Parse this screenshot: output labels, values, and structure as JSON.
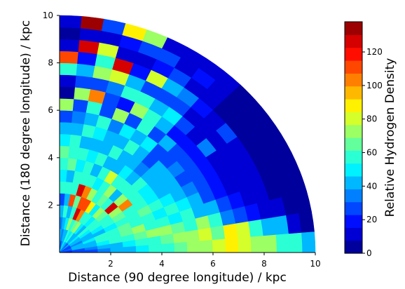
{
  "chart_data": {
    "type": "heatmap",
    "projection": "polar-quadrant",
    "xlabel": "Distance (90 degree longitude) / kpc",
    "ylabel": "Distance (180 degree longitude) / kpc",
    "xlim": [
      0,
      10
    ],
    "ylim": [
      0,
      10
    ],
    "xticks": [
      2,
      4,
      6,
      8,
      10
    ],
    "yticks": [
      2,
      4,
      6,
      8,
      10
    ],
    "colorbar": {
      "label": "Relative Hydrogen Density",
      "min": 0,
      "max": 138,
      "ticks": [
        0,
        20,
        40,
        60,
        80,
        100,
        120
      ],
      "colormap": "jet",
      "levels": 18
    },
    "radial_bin_kpc": 0.5,
    "angular_bin_deg": 5,
    "angle_convention": "degrees from the x axis (90 degree longitude) toward the y axis (180 degree longitude)",
    "cells": [
      {
        "ang": 87.5,
        "r_kpc": [
          0.25,
          0.75,
          1.25,
          1.75,
          2.25,
          2.75,
          3.25,
          3.75,
          4.25,
          4.75,
          5.25,
          5.75,
          6.25,
          6.75,
          7.25,
          7.75,
          8.25,
          8.75,
          9.25,
          9.75
        ],
        "density": [
          40,
          45,
          35,
          40,
          30,
          55,
          50,
          60,
          65,
          50,
          40,
          30,
          70,
          5,
          15,
          55,
          110,
          10,
          5,
          10
        ]
      },
      {
        "ang": 82.5,
        "r_kpc": [
          0.25,
          0.75,
          1.25,
          1.75,
          2.25,
          2.75,
          3.25,
          3.75,
          4.25,
          4.75,
          5.25,
          5.75,
          6.25,
          6.75,
          7.25,
          7.75,
          8.25,
          8.75,
          9.25,
          9.75
        ],
        "density": [
          30,
          35,
          40,
          55,
          45,
          60,
          45,
          65,
          55,
          60,
          45,
          35,
          25,
          75,
          25,
          40,
          20,
          125,
          10,
          135
        ]
      },
      {
        "ang": 77.5,
        "r_kpc": [
          0.25,
          0.75,
          1.25,
          1.75,
          2.25,
          2.75,
          3.25,
          3.75,
          4.25,
          4.75,
          5.25,
          5.75,
          6.25,
          6.75,
          7.25,
          7.75,
          8.25,
          8.75,
          9.25,
          9.75
        ],
        "density": [
          35,
          40,
          50,
          45,
          110,
          55,
          60,
          50,
          55,
          45,
          60,
          40,
          55,
          105,
          30,
          70,
          55,
          80,
          15,
          25
        ]
      },
      {
        "ang": 72.5,
        "r_kpc": [
          0.25,
          0.75,
          1.25,
          1.75,
          2.25,
          2.75,
          3.25,
          3.75,
          4.25,
          4.75,
          5.25,
          5.75,
          6.25,
          6.75,
          7.25,
          7.75,
          8.25,
          8.75,
          9.25,
          9.75
        ],
        "density": [
          40,
          45,
          70,
          60,
          65,
          125,
          60,
          55,
          50,
          45,
          50,
          55,
          30,
          25,
          35,
          80,
          125,
          15,
          20,
          85
        ]
      },
      {
        "ang": 67.5,
        "r_kpc": [
          0.25,
          0.75,
          1.25,
          1.75,
          2.25,
          2.75,
          3.25,
          3.75,
          4.25,
          4.75,
          5.25,
          5.75,
          6.25,
          6.75,
          7.25,
          7.75,
          8.25,
          8.75,
          9.25,
          9.75
        ],
        "density": [
          50,
          55,
          60,
          130,
          110,
          100,
          60,
          45,
          55,
          40,
          45,
          35,
          70,
          20,
          60,
          40,
          20,
          15,
          30,
          75
        ]
      },
      {
        "ang": 62.5,
        "r_kpc": [
          0.25,
          0.75,
          1.25,
          1.75,
          2.25,
          2.75,
          3.25,
          3.75,
          4.25,
          4.75,
          5.25,
          5.75,
          6.25,
          6.75,
          7.25,
          7.75,
          8.25,
          8.75,
          9.25,
          9.75
        ],
        "density": [
          45,
          50,
          65,
          100,
          110,
          70,
          50,
          60,
          45,
          55,
          40,
          50,
          30,
          75,
          55,
          30,
          80,
          20,
          25,
          15
        ]
      },
      {
        "ang": 57.5,
        "r_kpc": [
          0.25,
          0.75,
          1.25,
          1.75,
          2.25,
          2.75,
          3.25,
          3.75,
          4.25,
          4.75,
          5.25,
          5.75,
          6.25,
          6.75,
          7.25,
          7.75,
          8.25,
          8.75,
          9.25,
          9.75
        ],
        "density": [
          40,
          55,
          70,
          60,
          85,
          60,
          55,
          80,
          45,
          40,
          55,
          40,
          60,
          55,
          40,
          30,
          45,
          25,
          15,
          10
        ]
      },
      {
        "ang": 52.5,
        "r_kpc": [
          0.25,
          0.75,
          1.25,
          1.75,
          2.25,
          2.75,
          3.25,
          3.75,
          4.25,
          4.75,
          5.25,
          5.75,
          6.25,
          6.75,
          7.25,
          7.75,
          8.25,
          8.75,
          9.25,
          9.75
        ],
        "density": [
          35,
          45,
          50,
          55,
          50,
          65,
          75,
          55,
          50,
          45,
          40,
          50,
          30,
          45,
          50,
          25,
          35,
          15,
          20,
          10
        ]
      },
      {
        "ang": 47.5,
        "r_kpc": [
          0.25,
          0.75,
          1.25,
          1.75,
          2.25,
          2.75,
          3.25,
          3.75,
          4.25,
          4.75,
          5.25,
          5.75,
          6.25,
          6.75,
          7.25,
          7.75,
          8.25,
          8.75,
          9.25,
          9.75
        ],
        "density": [
          30,
          40,
          45,
          50,
          70,
          55,
          45,
          60,
          40,
          35,
          30,
          25,
          40,
          20,
          30,
          15,
          20,
          10,
          15,
          10
        ]
      },
      {
        "ang": 42.5,
        "r_kpc": [
          0.25,
          0.75,
          1.25,
          1.75,
          2.25,
          2.75,
          3.25,
          3.75,
          4.25,
          4.75,
          5.25,
          5.75,
          6.25,
          6.75,
          7.25,
          7.75,
          8.25,
          8.75,
          9.25,
          9.75
        ],
        "density": [
          40,
          50,
          55,
          60,
          65,
          125,
          75,
          60,
          55,
          45,
          40,
          30,
          25,
          20,
          15,
          10,
          10,
          5,
          5,
          5
        ]
      },
      {
        "ang": 37.5,
        "r_kpc": [
          0.25,
          0.75,
          1.25,
          1.75,
          2.25,
          2.75,
          3.25,
          3.75,
          4.25,
          4.75,
          5.25,
          5.75,
          6.25,
          6.75,
          7.25,
          7.75,
          8.25,
          8.75,
          9.25,
          9.75
        ],
        "density": [
          35,
          45,
          50,
          55,
          60,
          75,
          100,
          60,
          50,
          45,
          40,
          35,
          25,
          20,
          35,
          10,
          30,
          5,
          5,
          5
        ]
      },
      {
        "ang": 32.5,
        "r_kpc": [
          0.25,
          0.75,
          1.25,
          1.75,
          2.25,
          2.75,
          3.25,
          3.75,
          4.25,
          4.75,
          5.25,
          5.75,
          6.25,
          6.75,
          7.25,
          7.75,
          8.25,
          8.75,
          9.25,
          9.75
        ],
        "density": [
          30,
          40,
          45,
          50,
          55,
          65,
          60,
          55,
          50,
          45,
          40,
          30,
          25,
          20,
          15,
          10,
          10,
          5,
          5,
          5
        ]
      },
      {
        "ang": 27.5,
        "r_kpc": [
          0.25,
          0.75,
          1.25,
          1.75,
          2.25,
          2.75,
          3.25,
          3.75,
          4.25,
          4.75,
          5.25,
          5.75,
          6.25,
          6.75,
          7.25,
          7.75,
          8.25,
          8.75,
          9.25,
          9.75
        ],
        "density": [
          25,
          35,
          40,
          45,
          50,
          55,
          60,
          65,
          55,
          50,
          45,
          35,
          25,
          20,
          15,
          10,
          10,
          5,
          5,
          5
        ]
      },
      {
        "ang": 22.5,
        "r_kpc": [
          0.25,
          0.75,
          1.25,
          1.75,
          2.25,
          2.75,
          3.25,
          3.75,
          4.25,
          4.75,
          5.25,
          5.75,
          6.25,
          6.75,
          7.25,
          7.75,
          8.25,
          8.75,
          9.25,
          9.75
        ],
        "density": [
          30,
          40,
          50,
          55,
          60,
          65,
          55,
          60,
          50,
          55,
          50,
          40,
          30,
          20,
          15,
          10,
          10,
          5,
          5,
          5
        ]
      },
      {
        "ang": 17.5,
        "r_kpc": [
          0.25,
          0.75,
          1.25,
          1.75,
          2.25,
          2.75,
          3.25,
          3.75,
          4.25,
          4.75,
          5.25,
          5.75,
          6.25,
          6.75,
          7.25,
          7.75,
          8.25,
          8.75,
          9.25,
          9.75
        ],
        "density": [
          35,
          40,
          45,
          55,
          60,
          65,
          70,
          60,
          55,
          50,
          55,
          45,
          40,
          30,
          20,
          15,
          10,
          5,
          5,
          5
        ]
      },
      {
        "ang": 12.5,
        "r_kpc": [
          0.25,
          0.75,
          1.25,
          1.75,
          2.25,
          2.75,
          3.25,
          3.75,
          4.25,
          4.75,
          5.25,
          5.75,
          6.25,
          6.75,
          7.25,
          7.75,
          8.25,
          8.75,
          9.25,
          9.75
        ],
        "density": [
          30,
          40,
          45,
          50,
          55,
          60,
          65,
          70,
          75,
          65,
          55,
          70,
          60,
          35,
          30,
          20,
          15,
          10,
          5,
          5
        ]
      },
      {
        "ang": 7.5,
        "r_kpc": [
          0.25,
          0.75,
          1.25,
          1.75,
          2.25,
          2.75,
          3.25,
          3.75,
          4.25,
          4.75,
          5.25,
          5.75,
          6.25,
          6.75,
          7.25,
          7.75,
          8.25,
          8.75,
          9.25,
          9.75
        ],
        "density": [
          25,
          30,
          35,
          40,
          45,
          50,
          55,
          60,
          65,
          70,
          75,
          80,
          65,
          90,
          80,
          55,
          45,
          40,
          10,
          5
        ]
      },
      {
        "ang": 2.5,
        "r_kpc": [
          0.25,
          0.75,
          1.25,
          1.75,
          2.25,
          2.75,
          3.25,
          3.75,
          4.25,
          4.75,
          5.25,
          5.75,
          6.25,
          6.75,
          7.25,
          7.75,
          8.25,
          8.75,
          9.25,
          9.75
        ],
        "density": [
          20,
          25,
          30,
          35,
          40,
          45,
          50,
          55,
          60,
          65,
          70,
          75,
          80,
          85,
          80,
          75,
          70,
          60,
          55,
          45
        ]
      }
    ]
  }
}
